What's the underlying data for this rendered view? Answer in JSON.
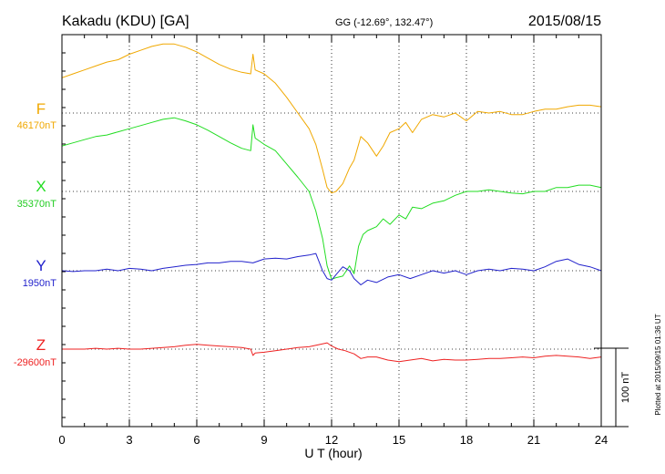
{
  "chart_data": {
    "type": "line",
    "station": "Kakadu (KDU)  [GA]",
    "coords": "GG (-12.69°, 132.47°)",
    "date": "2015/08/15",
    "xlabel": "U T (hour)",
    "xlim": [
      0,
      24
    ],
    "xticks": [
      "0",
      "3",
      "6",
      "9",
      "12",
      "15",
      "18",
      "21",
      "24"
    ],
    "grid": true,
    "scale_bar_nT": 100,
    "scale_label": "100 nT",
    "footer": "Plotted at 2015/09/15 01:36 UT",
    "series": [
      {
        "name": "F",
        "baseline_label": "46170nT",
        "baseline_nT": 46170,
        "color": "#f0a800",
        "x": [
          0,
          0.5,
          1,
          1.5,
          2,
          2.5,
          3,
          3.5,
          4,
          4.5,
          5,
          5.5,
          6,
          6.5,
          7,
          7.5,
          8,
          8.4,
          8.5,
          8.6,
          9,
          9.5,
          10,
          10.5,
          11,
          11.3,
          11.6,
          11.8,
          12,
          12.2,
          12.5,
          12.8,
          13,
          13.3,
          13.6,
          14,
          14.3,
          14.6,
          15,
          15.3,
          15.6,
          16,
          16.5,
          17,
          17.5,
          18,
          18.5,
          19,
          19.5,
          20,
          20.5,
          21,
          21.5,
          22,
          22.5,
          23,
          23.5,
          24
        ],
        "y": [
          45,
          50,
          55,
          60,
          65,
          68,
          75,
          80,
          85,
          88,
          88,
          84,
          78,
          70,
          62,
          56,
          52,
          50,
          75,
          55,
          50,
          38,
          20,
          0,
          -20,
          -40,
          -72,
          -95,
          -102,
          -100,
          -90,
          -70,
          -60,
          -30,
          -38,
          -55,
          -42,
          -25,
          -20,
          -12,
          -25,
          -8,
          -2,
          -5,
          0,
          -10,
          2,
          0,
          2,
          -2,
          -2,
          2,
          5,
          5,
          8,
          10,
          10,
          8
        ]
      },
      {
        "name": "X",
        "baseline_label": "35370nT",
        "baseline_nT": 35370,
        "color": "#22dd22",
        "x": [
          0,
          0.5,
          1,
          1.5,
          2,
          2.5,
          3,
          3.5,
          4,
          4.5,
          5,
          5.5,
          6,
          6.5,
          7,
          7.5,
          8,
          8.4,
          8.5,
          8.6,
          9,
          9.5,
          10,
          10.5,
          11,
          11.3,
          11.6,
          11.8,
          12,
          12.2,
          12.5,
          12.8,
          13,
          13.2,
          13.4,
          13.6,
          14,
          14.3,
          14.6,
          15,
          15.3,
          15.6,
          16,
          16.5,
          17,
          17.5,
          18,
          18.5,
          19,
          19.5,
          20,
          20.5,
          21,
          21.5,
          22,
          22.5,
          23,
          23.5,
          24
        ],
        "y": [
          58,
          62,
          66,
          70,
          72,
          76,
          80,
          84,
          88,
          92,
          94,
          90,
          85,
          78,
          70,
          62,
          55,
          52,
          85,
          68,
          60,
          52,
          35,
          18,
          0,
          -25,
          -60,
          -95,
          -112,
          -110,
          -108,
          -95,
          -105,
          -70,
          -55,
          -50,
          -45,
          -35,
          -42,
          -30,
          -35,
          -20,
          -22,
          -15,
          -12,
          -5,
          0,
          0,
          2,
          0,
          -2,
          -3,
          0,
          0,
          5,
          5,
          8,
          8,
          5
        ]
      },
      {
        "name": "Y",
        "baseline_label": "1950nT",
        "baseline_nT": 1950,
        "color": "#2222cc",
        "x": [
          0,
          0.5,
          1,
          1.5,
          2,
          2.5,
          3,
          3.5,
          4,
          4.5,
          5,
          5.5,
          6,
          6.5,
          7,
          7.5,
          8,
          8.5,
          9,
          9.5,
          10,
          10.5,
          11,
          11.3,
          11.6,
          11.8,
          12,
          12.2,
          12.5,
          12.8,
          13,
          13.3,
          13.6,
          14,
          14.5,
          15,
          15.5,
          16,
          16.5,
          17,
          17.5,
          18,
          18.5,
          19,
          19.5,
          20,
          20.5,
          21,
          21.5,
          22,
          22.5,
          23,
          23.5,
          24
        ],
        "y": [
          0,
          -1,
          0,
          0,
          2,
          0,
          3,
          2,
          0,
          3,
          5,
          7,
          8,
          10,
          10,
          12,
          12,
          10,
          15,
          16,
          15,
          18,
          20,
          22,
          0,
          -10,
          -12,
          -5,
          5,
          0,
          -10,
          -18,
          -12,
          -15,
          -8,
          -5,
          -10,
          -5,
          0,
          -3,
          0,
          -5,
          0,
          2,
          0,
          3,
          2,
          0,
          5,
          12,
          15,
          8,
          5,
          0
        ]
      },
      {
        "name": "Z",
        "baseline_label": "-29600nT",
        "baseline_nT": -29600,
        "color": "#ee2222",
        "x": [
          0,
          0.5,
          1,
          1.5,
          2,
          2.5,
          3,
          3.5,
          4,
          4.5,
          5,
          5.5,
          6,
          6.5,
          7,
          7.5,
          8,
          8.4,
          8.5,
          8.6,
          9,
          9.5,
          10,
          10.5,
          11,
          11.5,
          11.8,
          12,
          12.3,
          12.6,
          13,
          13.3,
          13.6,
          14,
          14.5,
          15,
          15.5,
          16,
          16.5,
          17,
          17.5,
          18,
          18.5,
          19,
          19.5,
          20,
          20.5,
          21,
          21.5,
          22,
          22.5,
          23,
          23.5,
          24
        ],
        "y": [
          0,
          0,
          0,
          1,
          0,
          1,
          0,
          0,
          1,
          2,
          3,
          5,
          6,
          5,
          4,
          3,
          2,
          0,
          -8,
          -5,
          -4,
          -2,
          0,
          2,
          3,
          6,
          8,
          4,
          0,
          -2,
          -6,
          -12,
          -10,
          -10,
          -14,
          -16,
          -14,
          -12,
          -15,
          -13,
          -14,
          -14,
          -13,
          -12,
          -12,
          -11,
          -10,
          -11,
          -9,
          -8,
          -9,
          -10,
          -12,
          -10
        ]
      }
    ]
  }
}
